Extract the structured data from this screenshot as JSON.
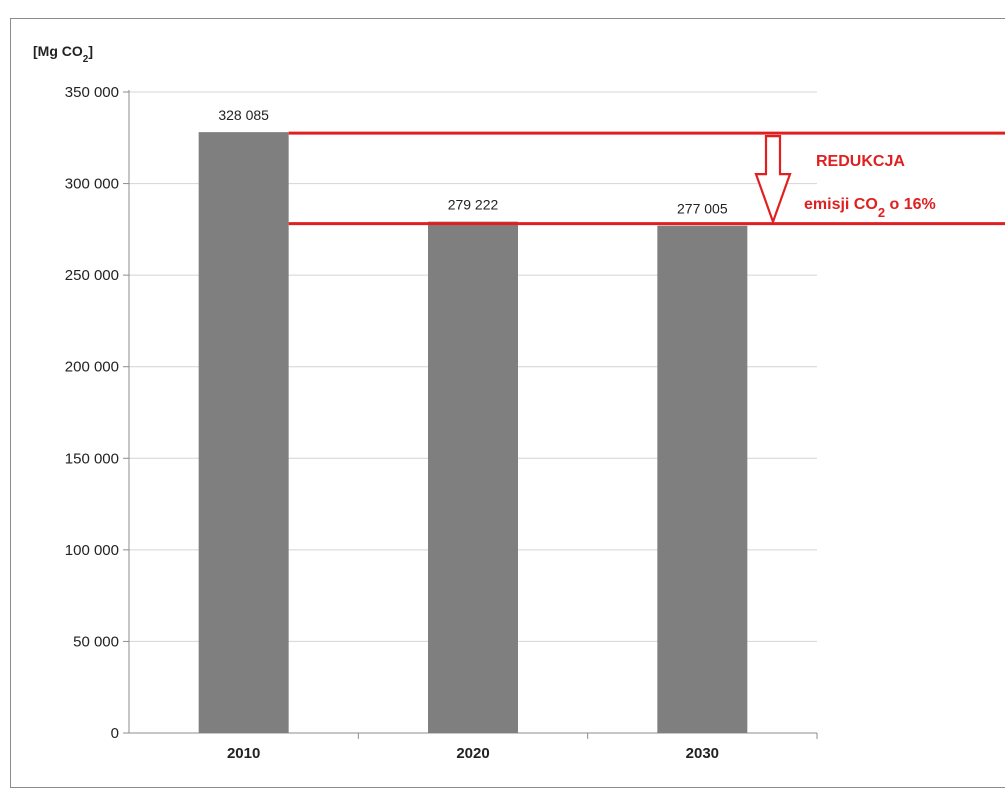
{
  "colors": {
    "bar": "#7f7f7f",
    "gridline": "#d4d4d4",
    "axis": "#8c8c8c",
    "annotation": "#e02020"
  },
  "icons": {
    "reduction_arrow": "down-arrow-icon"
  },
  "chart_data": {
    "type": "bar",
    "title": "",
    "xlabel": "",
    "ylabel": "",
    "unit_label": {
      "prefix": "[Mg CO",
      "subscript": "2",
      "suffix": "]"
    },
    "categories": [
      "2010",
      "2020",
      "2030"
    ],
    "values": [
      328085,
      279222,
      277005
    ],
    "data_labels": [
      "328 085",
      "279 222",
      "277 005"
    ],
    "ylim": [
      0,
      350000
    ],
    "yticks": [
      0,
      50000,
      100000,
      150000,
      200000,
      250000,
      300000,
      350000
    ],
    "ytick_labels": [
      "0",
      "50 000",
      "100 000",
      "150 000",
      "200 000",
      "250 000",
      "300 000",
      "350 000"
    ],
    "grid": true,
    "legend": "none",
    "annotation": {
      "title": "REDUKCJA",
      "line": {
        "prefix": "emisji CO",
        "subscript": "2",
        "suffix": " o 16%"
      },
      "upper_level": 328085,
      "lower_level": 277005
    }
  }
}
